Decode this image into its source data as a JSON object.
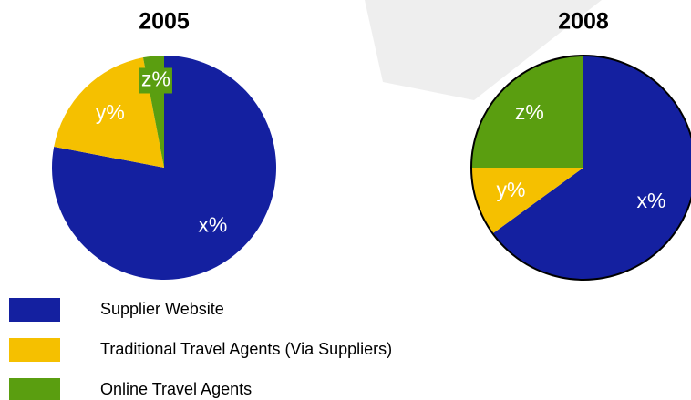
{
  "chart_data": [
    {
      "type": "pie",
      "title": "2005",
      "categories": [
        "Supplier Website",
        "Traditional Travel Agents (Via Suppliers)",
        "Online Travel Agents"
      ],
      "values": [
        78,
        19,
        3
      ],
      "value_labels": [
        "x%",
        "y%",
        "z%"
      ],
      "colors": [
        "#1420a0",
        "#f5c000",
        "#5a9e10"
      ],
      "outline": false,
      "legend": true
    },
    {
      "type": "pie",
      "title": "2008",
      "categories": [
        "Supplier Website",
        "Traditional Travel Agents (Via Suppliers)",
        "Online Travel Agents"
      ],
      "values": [
        65,
        10,
        25
      ],
      "value_labels": [
        "x%",
        "y%",
        "z%"
      ],
      "colors": [
        "#1420a0",
        "#f5c000",
        "#5a9e10"
      ],
      "outline": true,
      "legend": false
    }
  ]
}
